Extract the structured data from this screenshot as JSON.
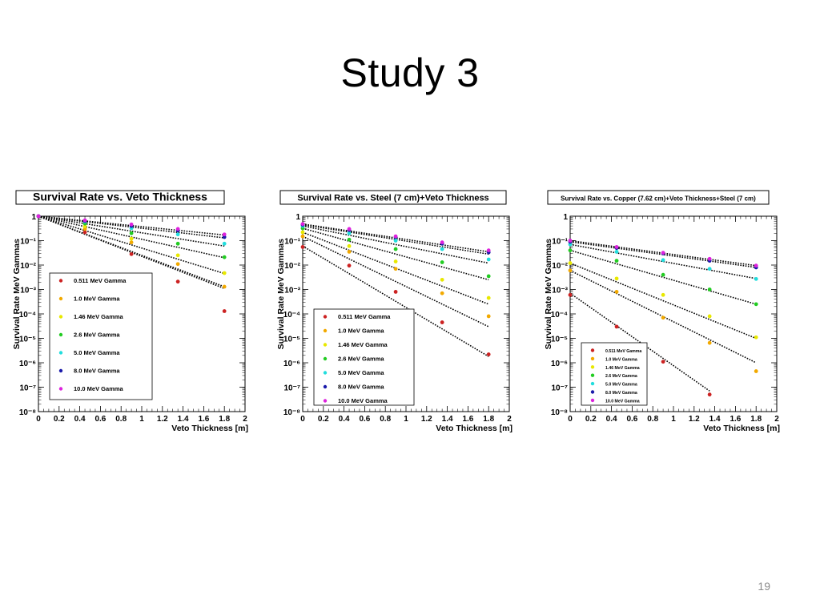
{
  "slide": {
    "title": "Study 3",
    "page_number": "19"
  },
  "chart_data": [
    {
      "type": "scatter",
      "title": "Survival Rate vs. Veto Thickness",
      "xlabel": "Veto Thickness [m]",
      "ylabel": "Survival Rate MeV Gammas",
      "xlim": [
        0,
        2
      ],
      "ylim": [
        1e-08,
        1
      ],
      "yscale": "log",
      "x_ticks": [
        "0",
        "0.2",
        "0.4",
        "0.6",
        "0.8",
        "1",
        "1.2",
        "1.4",
        "1.6",
        "1.8",
        "2"
      ],
      "y_ticks": [
        "10⁻⁸",
        "10⁻⁷",
        "10⁻⁶",
        "10⁻⁵",
        "10⁻⁴",
        "10⁻³",
        "10⁻²",
        "10⁻¹",
        "1"
      ],
      "legend": "bottom-left",
      "fit_lines": "dotted black",
      "series": [
        {
          "name": "0.511 MeV Gamma",
          "color": "#cc2222",
          "points": [
            [
              0,
              1
            ],
            [
              0.45,
              0.22
            ],
            [
              0.9,
              0.028
            ],
            [
              1.35,
              0.0021
            ],
            [
              1.8,
              0.00013
            ]
          ],
          "fit": [
            [
              0,
              1
            ],
            [
              1.8,
              0.0011
            ]
          ]
        },
        {
          "name": "1.0 MeV Gamma",
          "color": "#f2a900",
          "points": [
            [
              0,
              1
            ],
            [
              0.45,
              0.3
            ],
            [
              0.9,
              0.085
            ],
            [
              1.35,
              0.011
            ],
            [
              1.8,
              0.0013
            ]
          ],
          "fit": [
            [
              0,
              1
            ],
            [
              1.8,
              0.0013
            ]
          ]
        },
        {
          "name": "1.46 MeV Gamma",
          "color": "#e8e800",
          "points": [
            [
              0,
              1
            ],
            [
              0.45,
              0.38
            ],
            [
              0.9,
              0.12
            ],
            [
              1.35,
              0.025
            ],
            [
              1.8,
              0.0047
            ]
          ],
          "fit": [
            [
              0,
              1
            ],
            [
              1.8,
              0.0045
            ]
          ]
        },
        {
          "name": "2.6 MeV Gamma",
          "color": "#22cc22",
          "points": [
            [
              0,
              1
            ],
            [
              0.45,
              0.5
            ],
            [
              0.9,
              0.2
            ],
            [
              1.35,
              0.075
            ],
            [
              1.8,
              0.021
            ]
          ],
          "fit": [
            [
              0,
              1
            ],
            [
              1.8,
              0.02
            ]
          ]
        },
        {
          "name": "5.0 MeV Gamma",
          "color": "#22dddd",
          "points": [
            [
              0,
              1
            ],
            [
              0.45,
              0.6
            ],
            [
              0.9,
              0.32
            ],
            [
              1.35,
              0.18
            ],
            [
              1.8,
              0.075
            ]
          ],
          "fit": [
            [
              0,
              1
            ],
            [
              1.8,
              0.06
            ]
          ]
        },
        {
          "name": "8.0 MeV Gamma",
          "color": "#1a1aaa",
          "points": [
            [
              0,
              1
            ],
            [
              0.45,
              0.64
            ],
            [
              0.9,
              0.4
            ],
            [
              1.35,
              0.26
            ],
            [
              1.8,
              0.14
            ]
          ],
          "fit": [
            [
              0,
              1
            ],
            [
              1.8,
              0.13
            ]
          ]
        },
        {
          "name": "10.0 MeV Gamma",
          "color": "#dd22dd",
          "points": [
            [
              0,
              1
            ],
            [
              0.45,
              0.68
            ],
            [
              0.9,
              0.46
            ],
            [
              1.35,
              0.3
            ],
            [
              1.8,
              0.18
            ]
          ],
          "fit": [
            [
              0,
              1
            ],
            [
              1.8,
              0.17
            ]
          ]
        }
      ]
    },
    {
      "type": "scatter",
      "title": "Survival Rate vs. Steel (7 cm)+Veto Thickness",
      "xlabel": "Veto Thickness [m]",
      "ylabel": "Survival Rate MeV Gammas",
      "xlim": [
        0,
        2
      ],
      "ylim": [
        1e-08,
        1
      ],
      "yscale": "log",
      "x_ticks": [
        "0",
        "0.2",
        "0.4",
        "0.6",
        "0.8",
        "1",
        "1.2",
        "1.4",
        "1.6",
        "1.8",
        "2"
      ],
      "y_ticks": [
        "10⁻⁸",
        "10⁻⁷",
        "10⁻⁶",
        "10⁻⁵",
        "10⁻⁴",
        "10⁻³",
        "10⁻²",
        "10⁻¹",
        "1"
      ],
      "legend": "bottom-left",
      "fit_lines": "dotted black",
      "series": [
        {
          "name": "0.511 MeV Gamma",
          "color": "#cc2222",
          "points": [
            [
              0,
              0.055
            ],
            [
              0.45,
              0.0095
            ],
            [
              0.9,
              0.0008
            ],
            [
              1.35,
              4.5e-05
            ],
            [
              1.8,
              2.2e-06
            ]
          ],
          "fit": [
            [
              0,
              0.06
            ],
            [
              1.8,
              1.8e-06
            ]
          ]
        },
        {
          "name": "1.0 MeV Gamma",
          "color": "#f2a900",
          "points": [
            [
              0,
              0.15
            ],
            [
              0.45,
              0.035
            ],
            [
              0.9,
              0.007
            ],
            [
              1.35,
              0.0007
            ],
            [
              1.8,
              8e-05
            ]
          ],
          "fit": [
            [
              0,
              0.15
            ],
            [
              1.8,
              3e-05
            ]
          ]
        },
        {
          "name": "1.46 MeV Gamma",
          "color": "#e8e800",
          "points": [
            [
              0,
              0.22
            ],
            [
              0.45,
              0.06
            ],
            [
              0.9,
              0.014
            ],
            [
              1.35,
              0.0025
            ],
            [
              1.8,
              0.00045
            ]
          ],
          "fit": [
            [
              0,
              0.22
            ],
            [
              1.8,
              0.00025
            ]
          ]
        },
        {
          "name": "2.6 MeV Gamma",
          "color": "#22cc22",
          "points": [
            [
              0,
              0.32
            ],
            [
              0.45,
              0.11
            ],
            [
              0.9,
              0.045
            ],
            [
              1.35,
              0.013
            ],
            [
              1.8,
              0.0035
            ]
          ],
          "fit": [
            [
              0,
              0.32
            ],
            [
              1.8,
              0.0025
            ]
          ]
        },
        {
          "name": "5.0 MeV Gamma",
          "color": "#22dddd",
          "points": [
            [
              0,
              0.4
            ],
            [
              0.45,
              0.2
            ],
            [
              0.9,
              0.1
            ],
            [
              1.35,
              0.045
            ],
            [
              1.8,
              0.017
            ]
          ],
          "fit": [
            [
              0,
              0.4
            ],
            [
              1.8,
              0.012
            ]
          ]
        },
        {
          "name": "8.0 MeV Gamma",
          "color": "#1a1aaa",
          "points": [
            [
              0,
              0.45
            ],
            [
              0.45,
              0.27
            ],
            [
              0.9,
              0.14
            ],
            [
              1.35,
              0.075
            ],
            [
              1.8,
              0.033
            ]
          ],
          "fit": [
            [
              0,
              0.45
            ],
            [
              1.8,
              0.028
            ]
          ]
        },
        {
          "name": "10.0 MeV Gamma",
          "color": "#dd22dd",
          "points": [
            [
              0,
              0.48
            ],
            [
              0.45,
              0.3
            ],
            [
              0.9,
              0.15
            ],
            [
              1.35,
              0.085
            ],
            [
              1.8,
              0.04
            ]
          ],
          "fit": [
            [
              0,
              0.48
            ],
            [
              1.8,
              0.035
            ]
          ]
        }
      ]
    },
    {
      "type": "scatter",
      "title": "Survival Rate vs. Copper (7.62 cm)+Veto Thickness+Steel (7 cm)",
      "xlabel": "Veto Thickness [m]",
      "ylabel": "Survival Rate MeV Gammas",
      "xlim": [
        0,
        2
      ],
      "ylim": [
        1e-08,
        1
      ],
      "yscale": "log",
      "x_ticks": [
        "0",
        "0.2",
        "0.4",
        "0.6",
        "0.8",
        "1",
        "1.2",
        "1.4",
        "1.6",
        "1.8",
        "2"
      ],
      "y_ticks": [
        "10⁻⁸",
        "10⁻⁷",
        "10⁻⁶",
        "10⁻⁵",
        "10⁻⁴",
        "10⁻³",
        "10⁻²",
        "10⁻¹",
        "1"
      ],
      "legend": "bottom-left",
      "fit_lines": "dotted black",
      "series": [
        {
          "name": "0.511 MeV Gamma",
          "color": "#cc2222",
          "points": [
            [
              0,
              0.0006
            ],
            [
              0.45,
              3e-05
            ],
            [
              0.9,
              1.1e-06
            ],
            [
              1.35,
              5e-08
            ]
          ],
          "fit": [
            [
              0,
              0.0007
            ],
            [
              1.35,
              7e-08
            ]
          ]
        },
        {
          "name": "1.0 MeV Gamma",
          "color": "#f2a900",
          "points": [
            [
              0,
              0.006
            ],
            [
              0.45,
              0.0008
            ],
            [
              0.9,
              7e-05
            ],
            [
              1.35,
              6.5e-06
            ],
            [
              1.8,
              4.5e-07
            ]
          ],
          "fit": [
            [
              0,
              0.006
            ],
            [
              1.8,
              1e-06
            ]
          ]
        },
        {
          "name": "1.46 MeV Gamma",
          "color": "#e8e800",
          "points": [
            [
              0,
              0.012
            ],
            [
              0.45,
              0.0028
            ],
            [
              0.9,
              0.0006
            ],
            [
              1.35,
              8e-05
            ],
            [
              1.8,
              1.1e-05
            ]
          ],
          "fit": [
            [
              0,
              0.012
            ],
            [
              1.8,
              1e-05
            ]
          ]
        },
        {
          "name": "2.6 MeV Gamma",
          "color": "#22cc22",
          "points": [
            [
              0,
              0.04
            ],
            [
              0.45,
              0.015
            ],
            [
              0.9,
              0.004
            ],
            [
              1.35,
              0.001
            ],
            [
              1.8,
              0.00025
            ]
          ],
          "fit": [
            [
              0,
              0.04
            ],
            [
              1.8,
              0.00025
            ]
          ]
        },
        {
          "name": "5.0 MeV Gamma",
          "color": "#22dddd",
          "points": [
            [
              0,
              0.07
            ],
            [
              0.45,
              0.035
            ],
            [
              0.9,
              0.016
            ],
            [
              1.35,
              0.007
            ],
            [
              1.8,
              0.0027
            ]
          ],
          "fit": [
            [
              0,
              0.07
            ],
            [
              1.8,
              0.0028
            ]
          ]
        },
        {
          "name": "8.0 MeV Gamma",
          "color": "#1a1aaa",
          "points": [
            [
              0,
              0.09
            ],
            [
              0.45,
              0.05
            ],
            [
              0.9,
              0.03
            ],
            [
              1.35,
              0.015
            ],
            [
              1.8,
              0.008
            ]
          ],
          "fit": [
            [
              0,
              0.09
            ],
            [
              1.8,
              0.008
            ]
          ]
        },
        {
          "name": "10.0 MeV Gamma",
          "color": "#dd22dd",
          "points": [
            [
              0,
              0.1
            ],
            [
              0.45,
              0.055
            ],
            [
              0.9,
              0.032
            ],
            [
              1.35,
              0.018
            ],
            [
              1.8,
              0.0095
            ]
          ],
          "fit": [
            [
              0,
              0.1
            ],
            [
              1.8,
              0.0095
            ]
          ]
        }
      ]
    }
  ]
}
